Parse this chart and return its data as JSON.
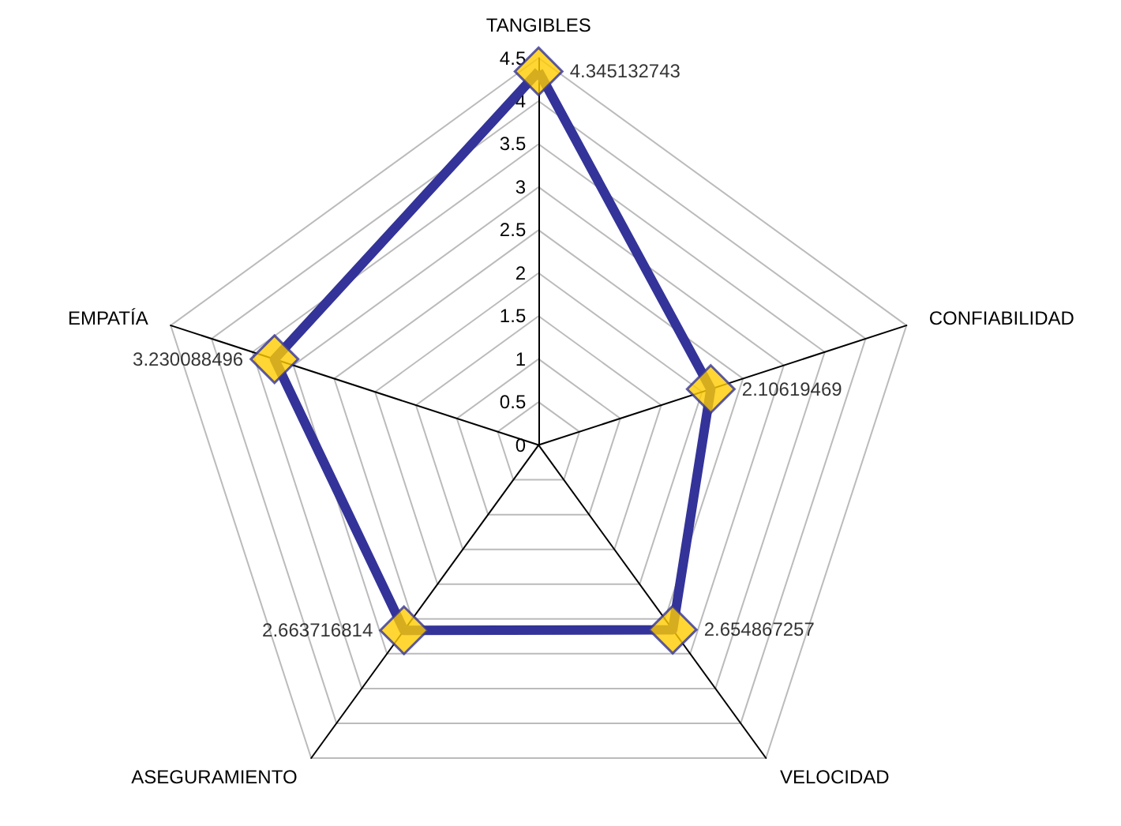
{
  "chart_data": {
    "type": "radar",
    "categories": [
      "TANGIBLES",
      "CONFIABILIDAD",
      "VELOCIDAD",
      "ASEGURAMIENTO",
      "EMPATÍA"
    ],
    "series": [
      {
        "color": "#333399",
        "colors": [
          "#ffcc00",
          "#ffcc00",
          "#ffcc00",
          "#ffcc00",
          "#ffcc00"
        ],
        "values": [
          4.345132743,
          2.10619469,
          2.654867257,
          2.663716814,
          3.230088496
        ]
      }
    ],
    "ylim": [
      0,
      4.5
    ],
    "yticks": [
      0,
      0.5,
      1,
      1.5,
      2,
      2.5,
      3,
      3.5,
      4,
      4.5
    ],
    "grid": true,
    "marker": "diamond",
    "data_labels": true
  }
}
